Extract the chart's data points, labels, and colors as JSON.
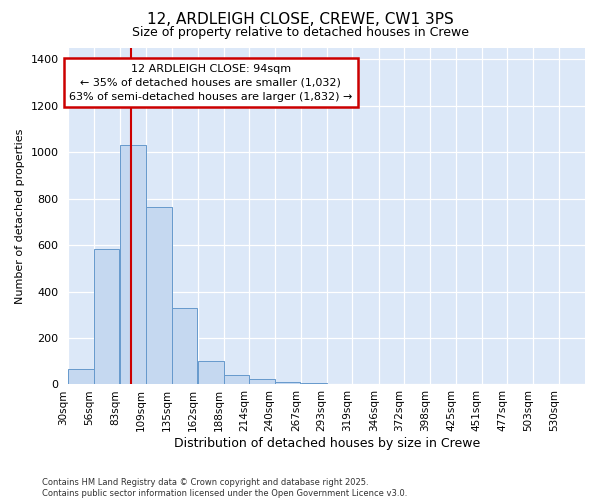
{
  "title_line1": "12, ARDLEIGH CLOSE, CREWE, CW1 3PS",
  "title_line2": "Size of property relative to detached houses in Crewe",
  "xlabel": "Distribution of detached houses by size in Crewe",
  "ylabel": "Number of detached properties",
  "footnote": "Contains HM Land Registry data © Crown copyright and database right 2025.\nContains public sector information licensed under the Open Government Licence v3.0.",
  "bin_edges": [
    30,
    56,
    83,
    109,
    135,
    162,
    188,
    214,
    240,
    267,
    293,
    319,
    346,
    372,
    398,
    425,
    451,
    477,
    503,
    530,
    556
  ],
  "bar_heights": [
    68,
    585,
    1032,
    762,
    327,
    100,
    42,
    25,
    12,
    5,
    3,
    2,
    1,
    1,
    0,
    0,
    0,
    0,
    0,
    0
  ],
  "bar_color": "#c5d8f0",
  "bar_edge_color": "#6699cc",
  "plot_bg_color": "#dce8f8",
  "fig_bg_color": "#ffffff",
  "grid_color": "#ffffff",
  "vline_x": 94,
  "vline_color": "#cc0000",
  "annotation_line1": "12 ARDLEIGH CLOSE: 94sqm",
  "annotation_line2": "← 35% of detached houses are smaller (1,032)",
  "annotation_line3": "63% of semi-detached houses are larger (1,832) →",
  "annotation_box_color": "#cc0000",
  "annotation_bg": "#ffffff",
  "ylim": [
    0,
    1450
  ],
  "yticks": [
    0,
    200,
    400,
    600,
    800,
    1000,
    1200,
    1400
  ],
  "xlim": [
    30,
    556
  ]
}
